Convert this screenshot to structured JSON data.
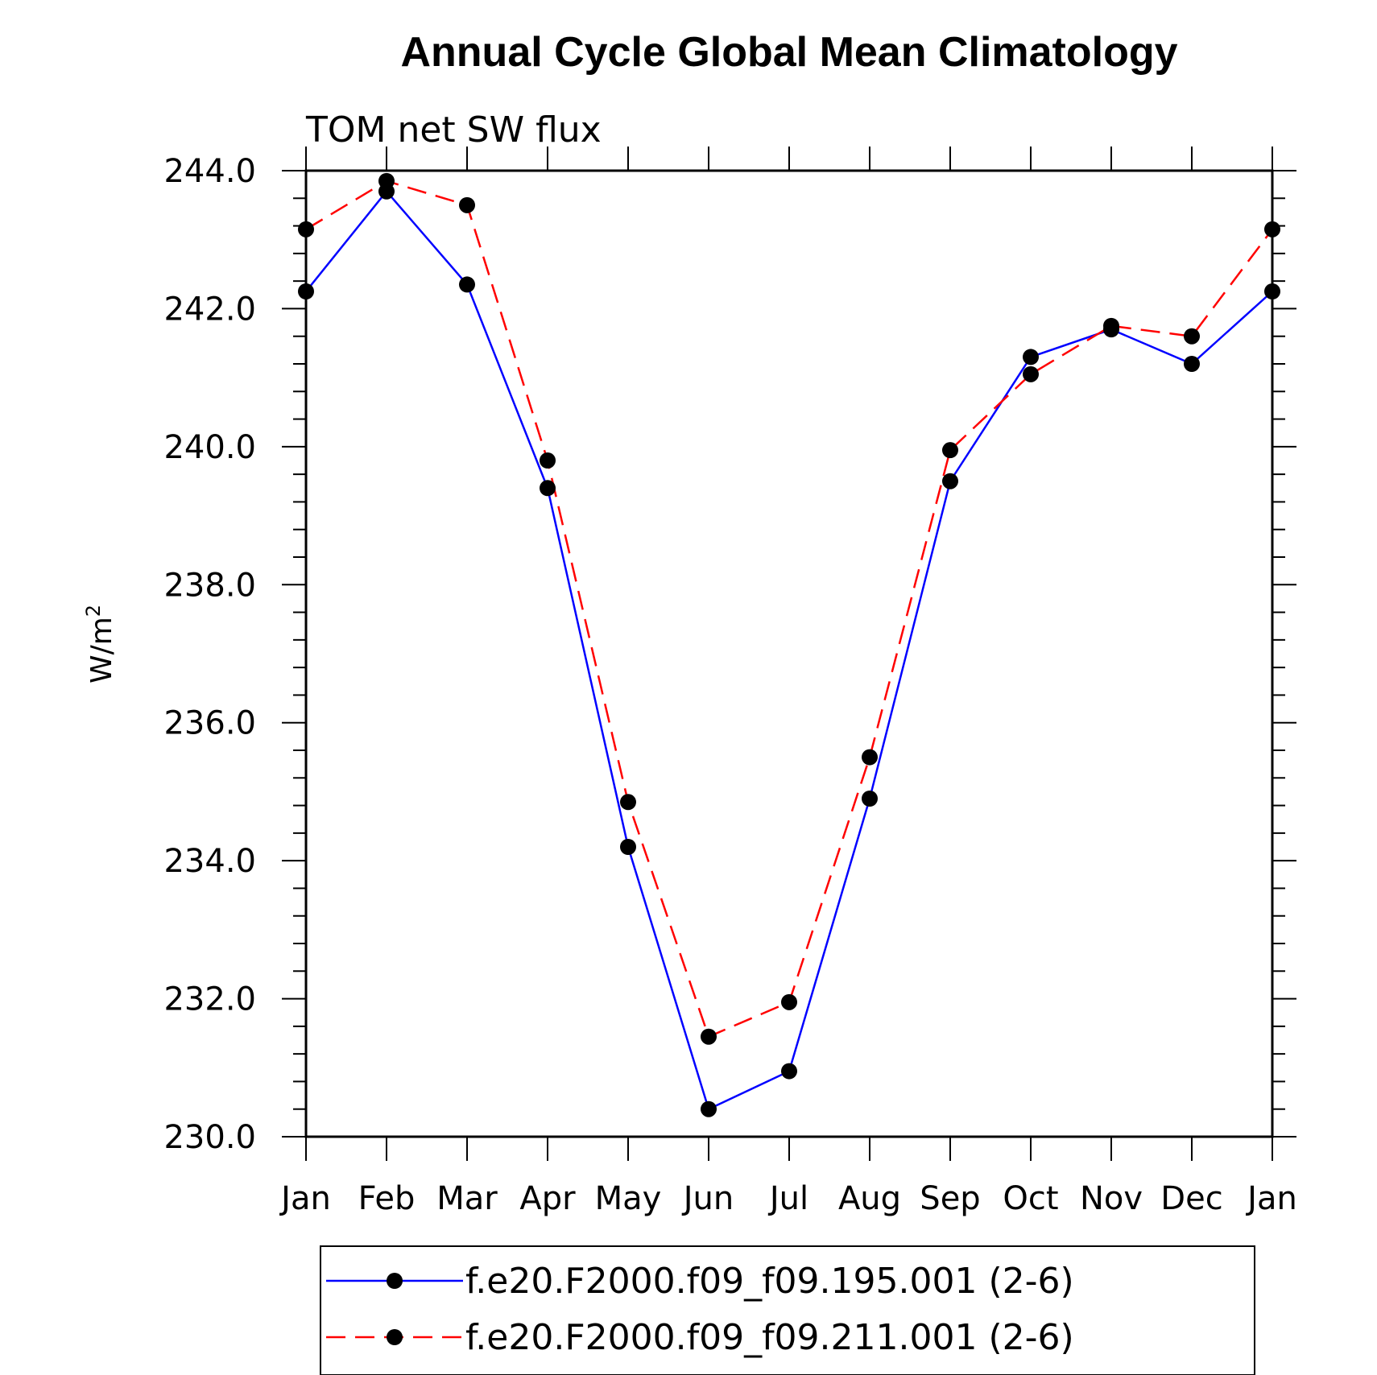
{
  "chart_data": {
    "type": "line",
    "title": "Annual Cycle Global Mean Climatology",
    "subtitle": "TOM net SW flux",
    "xlabel": "",
    "ylabel": "W/m",
    "ylabel_superscript": "2",
    "ylim": [
      230.0,
      244.0
    ],
    "y_ticks": [
      "230.0",
      "232.0",
      "234.0",
      "236.0",
      "238.0",
      "240.0",
      "242.0",
      "244.0"
    ],
    "categories": [
      "Jan",
      "Feb",
      "Mar",
      "Apr",
      "May",
      "Jun",
      "Jul",
      "Aug",
      "Sep",
      "Oct",
      "Nov",
      "Dec",
      "Jan"
    ],
    "series": [
      {
        "name": "f.e20.F2000.f09_f09.195.001 (2-6)",
        "color": "#0000ff",
        "dash": "solid",
        "values": [
          242.25,
          243.7,
          242.35,
          239.4,
          234.2,
          230.4,
          230.95,
          234.9,
          239.5,
          241.3,
          241.7,
          241.2,
          242.25
        ]
      },
      {
        "name": "f.e20.F2000.f09_f09.211.001 (2-6)",
        "color": "#ff0000",
        "dash": "dashed",
        "values": [
          243.15,
          243.85,
          243.5,
          239.8,
          234.85,
          231.45,
          231.95,
          235.5,
          239.95,
          241.05,
          241.75,
          241.6,
          243.15
        ]
      }
    ],
    "legend_position": "bottom-center"
  }
}
